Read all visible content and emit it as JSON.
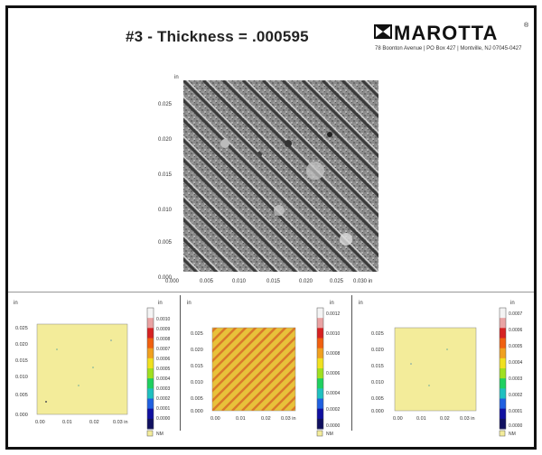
{
  "title": "#3 - Thickness = .000595",
  "brand": {
    "name": "MAROTTA",
    "registered": "®",
    "address": "78 Boonton Avenue | PO Box 427 | Montville, NJ 07045-0427",
    "logo_icon": "marotta-logo-icon"
  },
  "main_plot": {
    "unit": "in",
    "x_ticks": [
      "0.000",
      "0.005",
      "0.010",
      "0.015",
      "0.020",
      "0.025",
      "0.030 in"
    ],
    "y_ticks": [
      "0.025",
      "0.020",
      "0.015",
      "0.010",
      "0.005",
      "0.000"
    ]
  },
  "panels": [
    {
      "unit": "in",
      "x_ticks": [
        "0.00",
        "0.01",
        "0.02",
        "0.03 in"
      ],
      "y_ticks": [
        "0.025",
        "0.020",
        "0.015",
        "0.010",
        "0.005",
        "0.000"
      ],
      "y_unit": "in",
      "colorbar_unit": "in",
      "colorbar_ticks": [
        "0.0010",
        "0.0009",
        "0.0008",
        "0.0007",
        "0.0006",
        "0.0005",
        "0.0004",
        "0.0003",
        "0.0002",
        "0.0001",
        "0.0000"
      ],
      "legend_label": "NM",
      "fill_color": "#f3ec9a"
    },
    {
      "unit": "in",
      "x_ticks": [
        "0.00",
        "0.01",
        "0.02",
        "0.03 in"
      ],
      "y_ticks": [
        "0.025",
        "0.020",
        "0.015",
        "0.010",
        "0.005",
        "0.000"
      ],
      "y_unit": "in",
      "colorbar_unit": "in",
      "colorbar_ticks": [
        "0.0012",
        "0.0010",
        "0.0008",
        "0.0006",
        "0.0004",
        "0.0002",
        "0.0000"
      ],
      "legend_label": "NM",
      "fill_color": "#e8c13a"
    },
    {
      "unit": "in",
      "x_ticks": [
        "0.00",
        "0.01",
        "0.02",
        "0.03 in"
      ],
      "y_ticks": [
        "0.025",
        "0.020",
        "0.015",
        "0.010",
        "0.005",
        "0.000"
      ],
      "y_unit": "in",
      "colorbar_unit": "in",
      "colorbar_ticks": [
        "0.0007",
        "0.0006",
        "0.0005",
        "0.0004",
        "0.0003",
        "0.0002",
        "0.0001",
        "0.0000"
      ],
      "legend_label": "NM",
      "fill_color": "#f3ec9a"
    }
  ]
}
